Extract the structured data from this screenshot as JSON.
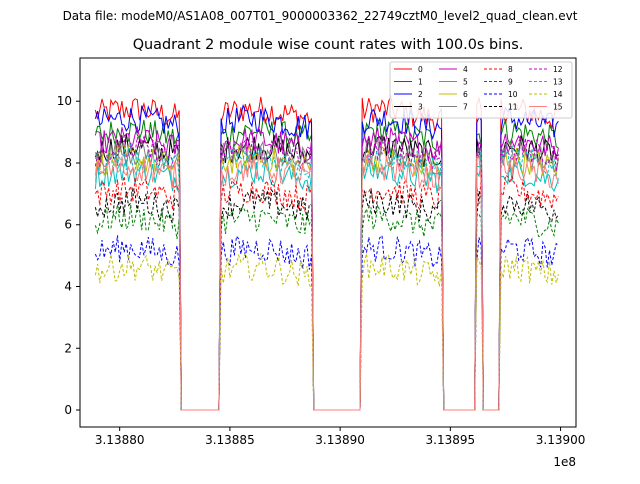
{
  "suptitle": "Data file: modeM0/AS1A08_007T01_9000003362_22749cztM0_level2_quad_clean.evt",
  "chart_data": {
    "type": "line",
    "title": "Quadrant 2 module wise count rates with 100.0s bins.",
    "xlabel": "",
    "ylabel": "",
    "x_offset_label": "1e8",
    "x_scale": 100000000,
    "xlim": [
      313878200,
      313900700
    ],
    "ylim": [
      -0.55,
      11.4
    ],
    "xticks": [
      313880000,
      313885000,
      313890000,
      313895000,
      313900000
    ],
    "xtick_labels": [
      "3.13880",
      "3.13885",
      "3.13890",
      "3.13895",
      "3.13900"
    ],
    "yticks": [
      0,
      2,
      4,
      6,
      8,
      10
    ],
    "ytick_labels": [
      "0",
      "2",
      "4",
      "6",
      "8",
      "10"
    ],
    "bin_seconds": 100,
    "good_time_intervals": [
      [
        313878900,
        313882700
      ],
      [
        313884600,
        313888700
      ],
      [
        313891000,
        313894600
      ],
      [
        313896200,
        313896400
      ],
      [
        313897300,
        313899900
      ]
    ],
    "legend_location": "upper right",
    "series": [
      {
        "name": "0",
        "color": "#ff0000",
        "dashed": false,
        "level": 9.6
      },
      {
        "name": "1",
        "color": "#008000",
        "dashed": false,
        "level": 8.9
      },
      {
        "name": "2",
        "color": "#0000ff",
        "dashed": false,
        "level": 9.3
      },
      {
        "name": "3",
        "color": "#000000",
        "dashed": false,
        "level": 8.4
      },
      {
        "name": "4",
        "color": "#bf00bf",
        "dashed": false,
        "level": 8.6
      },
      {
        "name": "5",
        "color": "#00bfbf",
        "dashed": false,
        "level": 7.6
      },
      {
        "name": "6",
        "color": "#bfbf00",
        "dashed": false,
        "level": 8.0
      },
      {
        "name": "7",
        "color": "#808080",
        "dashed": false,
        "level": 8.2
      },
      {
        "name": "8",
        "color": "#ff0000",
        "dashed": true,
        "level": 7.0
      },
      {
        "name": "9",
        "color": "#008000",
        "dashed": true,
        "level": 6.1
      },
      {
        "name": "10",
        "color": "#0000ff",
        "dashed": true,
        "level": 5.1
      },
      {
        "name": "11",
        "color": "#000000",
        "dashed": true,
        "level": 6.6
      },
      {
        "name": "12",
        "color": "#bf00bf",
        "dashed": true,
        "level": 8.3
      },
      {
        "name": "13",
        "color": "#00bfbf",
        "dashed": true,
        "level": 8.0
      },
      {
        "name": "14",
        "color": "#bfbf00",
        "dashed": true,
        "level": 4.5
      },
      {
        "name": "15",
        "color": "#ff7f7f",
        "dashed": false,
        "level": 7.7
      }
    ]
  }
}
